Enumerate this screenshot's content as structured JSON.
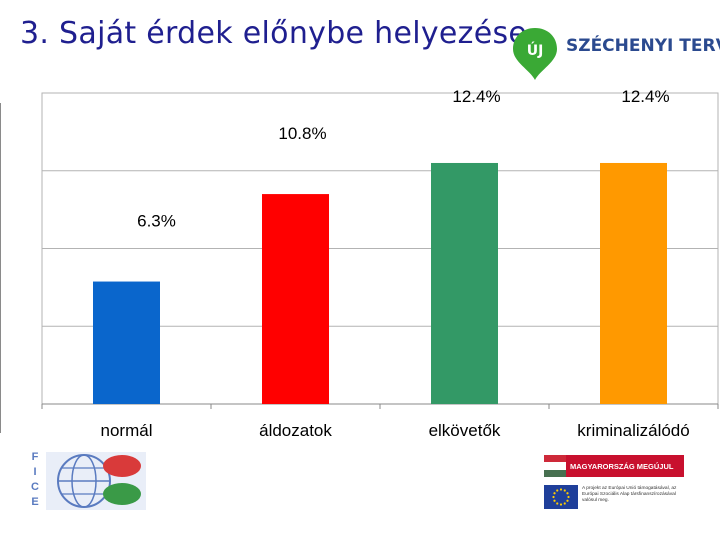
{
  "slide": {
    "title": "3. Saját érdek előnybe helyezése",
    "brand_logo_text": "ÚJ SZÉCHENYI TERV",
    "fice_letters": [
      "F",
      "I",
      "C",
      "E"
    ],
    "mm_banner": "MAGYARORSZÁG MEGÚJUL",
    "eu_text": "A projekt az Európai Unió támogatásával, az Európai Szociális Alap társfinanszírozásával valósul meg."
  },
  "colors": {
    "title": "#1f1f8f",
    "normal": "#0a66cc",
    "aldozatok": "#ff0000",
    "elkovetok": "#339966",
    "kriminalizalodo": "#ff9900",
    "brand_green": "#3aa935",
    "gridline": "#b3b3b3"
  },
  "chart_data": {
    "type": "bar",
    "categories": [
      "normál",
      "áldozatok",
      "elkövetők",
      "kriminalizálódó"
    ],
    "values": [
      6.3,
      10.8,
      12.4,
      12.4
    ],
    "data_labels": [
      "6.3%",
      "10.8%",
      "12.4%",
      "12.4%"
    ],
    "colors": [
      "#0a66cc",
      "#ff0000",
      "#339966",
      "#ff9900"
    ],
    "ylim": [
      0,
      16
    ],
    "grid": true,
    "title": "",
    "xlabel": "",
    "ylabel": ""
  }
}
